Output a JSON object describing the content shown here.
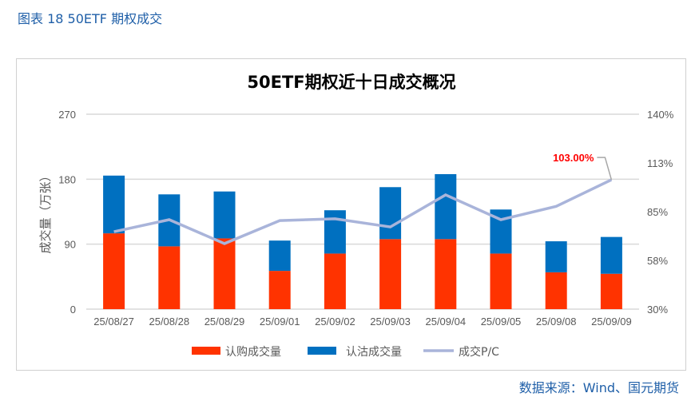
{
  "figure_title": "图表 18 50ETF 期权成交",
  "source": "数据来源：Wind、国元期货",
  "chart_data": {
    "type": "bar",
    "stacked": true,
    "title": "50ETF期权近十日成交概况",
    "ylabel": "成交量（万张）",
    "ylim": [
      0,
      270
    ],
    "yticks": [
      "0",
      "90",
      "180",
      "270"
    ],
    "y2lim": [
      30,
      140
    ],
    "y2ticks": [
      "30%",
      "58%",
      "85%",
      "113%",
      "140%"
    ],
    "grid": true,
    "legend": "bottom",
    "categories": [
      "25/08/27",
      "25/08/28",
      "25/08/29",
      "25/09/01",
      "25/09/02",
      "25/09/03",
      "25/09/04",
      "25/09/05",
      "25/09/08",
      "25/09/09"
    ],
    "series": [
      {
        "name": "认购成交量",
        "type": "bar",
        "color": "#ff3300",
        "values": [
          105,
          87,
          98,
          53,
          77,
          97,
          97,
          77,
          51,
          49
        ]
      },
      {
        "name": "认沽成交量",
        "type": "bar",
        "color": "#0070c0",
        "values": [
          80,
          72,
          65,
          42,
          60,
          72,
          90,
          61,
          43,
          51
        ]
      },
      {
        "name": "成交P/C",
        "type": "line",
        "axis": "right",
        "color": "#a9b4da",
        "values": [
          73.7,
          80.5,
          67,
          80,
          81,
          76.4,
          94.5,
          80.5,
          88,
          103
        ]
      }
    ],
    "annotation": {
      "text": "103.00%",
      "color": "#ff0000"
    }
  }
}
